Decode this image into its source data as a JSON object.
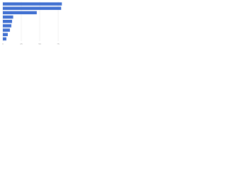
{
  "chart_data": {
    "type": "hbar",
    "categories": [
      null,
      null,
      null,
      null,
      null,
      null,
      null,
      null,
      null
    ],
    "values": [
      80,
      79,
      46,
      14,
      12.5,
      11.5,
      9.6,
      6.7,
      4.8
    ],
    "color": "#3f6fd1",
    "xlim": [
      0,
      90
    ],
    "xticks": [
      0,
      25,
      50,
      75
    ],
    "grid": true
  }
}
